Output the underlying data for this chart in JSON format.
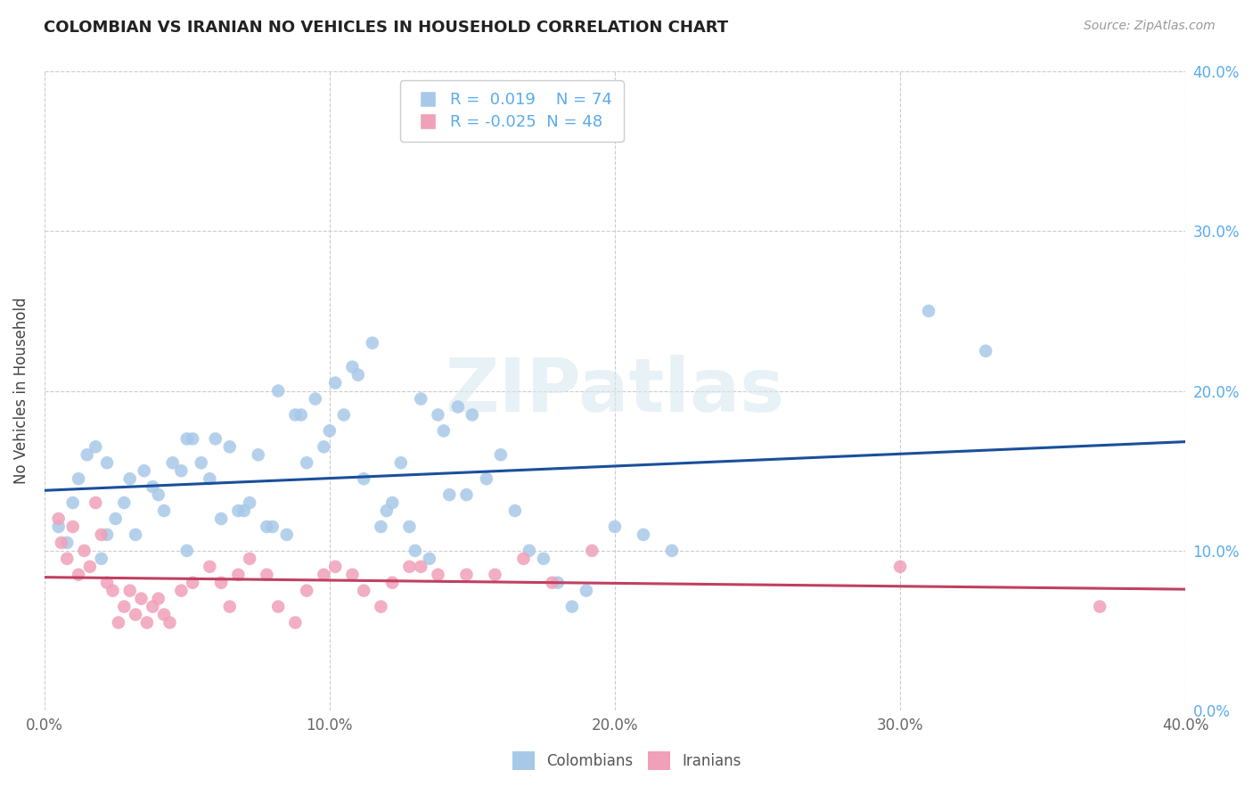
{
  "title": "COLOMBIAN VS IRANIAN NO VEHICLES IN HOUSEHOLD CORRELATION CHART",
  "source": "Source: ZipAtlas.com",
  "ylabel": "No Vehicles in Household",
  "xlim": [
    0.0,
    0.4
  ],
  "ylim": [
    0.0,
    0.4
  ],
  "xticks": [
    0.0,
    0.1,
    0.2,
    0.3,
    0.4
  ],
  "yticks": [
    0.0,
    0.1,
    0.2,
    0.3,
    0.4
  ],
  "xtick_labels": [
    "0.0%",
    "10.0%",
    "20.0%",
    "30.0%",
    "40.0%"
  ],
  "ytick_labels_right": [
    "0.0%",
    "10.0%",
    "20.0%",
    "30.0%",
    "40.0%"
  ],
  "colombian_R": 0.019,
  "colombian_N": 74,
  "iranian_R": -0.025,
  "iranian_N": 48,
  "colombian_color": "#a8c8e8",
  "colombian_line_color": "#1a4f9c",
  "iranian_color": "#f0a0b8",
  "iranian_line_color": "#c04060",
  "watermark": "ZIPatlas",
  "colombian_x": [
    0.005,
    0.008,
    0.01,
    0.012,
    0.015,
    0.018,
    0.02,
    0.022,
    0.022,
    0.025,
    0.028,
    0.03,
    0.032,
    0.035,
    0.038,
    0.04,
    0.042,
    0.045,
    0.048,
    0.05,
    0.05,
    0.052,
    0.055,
    0.058,
    0.06,
    0.062,
    0.065,
    0.068,
    0.07,
    0.072,
    0.075,
    0.078,
    0.08,
    0.082,
    0.085,
    0.088,
    0.09,
    0.092,
    0.095,
    0.098,
    0.1,
    0.102,
    0.105,
    0.108,
    0.11,
    0.112,
    0.115,
    0.118,
    0.12,
    0.122,
    0.125,
    0.128,
    0.13,
    0.132,
    0.135,
    0.138,
    0.14,
    0.142,
    0.145,
    0.148,
    0.15,
    0.155,
    0.16,
    0.165,
    0.17,
    0.175,
    0.18,
    0.185,
    0.19,
    0.2,
    0.21,
    0.22,
    0.31,
    0.33
  ],
  "colombian_y": [
    0.115,
    0.105,
    0.13,
    0.145,
    0.16,
    0.165,
    0.095,
    0.155,
    0.11,
    0.12,
    0.13,
    0.145,
    0.11,
    0.15,
    0.14,
    0.135,
    0.125,
    0.155,
    0.15,
    0.17,
    0.1,
    0.17,
    0.155,
    0.145,
    0.17,
    0.12,
    0.165,
    0.125,
    0.125,
    0.13,
    0.16,
    0.115,
    0.115,
    0.2,
    0.11,
    0.185,
    0.185,
    0.155,
    0.195,
    0.165,
    0.175,
    0.205,
    0.185,
    0.215,
    0.21,
    0.145,
    0.23,
    0.115,
    0.125,
    0.13,
    0.155,
    0.115,
    0.1,
    0.195,
    0.095,
    0.185,
    0.175,
    0.135,
    0.19,
    0.135,
    0.185,
    0.145,
    0.16,
    0.125,
    0.1,
    0.095,
    0.08,
    0.065,
    0.075,
    0.115,
    0.11,
    0.1,
    0.25,
    0.225
  ],
  "iranian_x": [
    0.005,
    0.006,
    0.008,
    0.01,
    0.012,
    0.014,
    0.016,
    0.018,
    0.02,
    0.022,
    0.024,
    0.026,
    0.028,
    0.03,
    0.032,
    0.034,
    0.036,
    0.038,
    0.04,
    0.042,
    0.044,
    0.048,
    0.052,
    0.058,
    0.062,
    0.065,
    0.068,
    0.072,
    0.078,
    0.082,
    0.088,
    0.092,
    0.098,
    0.102,
    0.108,
    0.112,
    0.118,
    0.122,
    0.128,
    0.132,
    0.138,
    0.148,
    0.158,
    0.168,
    0.178,
    0.192,
    0.3,
    0.37
  ],
  "iranian_y": [
    0.12,
    0.105,
    0.095,
    0.115,
    0.085,
    0.1,
    0.09,
    0.13,
    0.11,
    0.08,
    0.075,
    0.055,
    0.065,
    0.075,
    0.06,
    0.07,
    0.055,
    0.065,
    0.07,
    0.06,
    0.055,
    0.075,
    0.08,
    0.09,
    0.08,
    0.065,
    0.085,
    0.095,
    0.085,
    0.065,
    0.055,
    0.075,
    0.085,
    0.09,
    0.085,
    0.075,
    0.065,
    0.08,
    0.09,
    0.09,
    0.085,
    0.085,
    0.085,
    0.095,
    0.08,
    0.1,
    0.09,
    0.065
  ]
}
